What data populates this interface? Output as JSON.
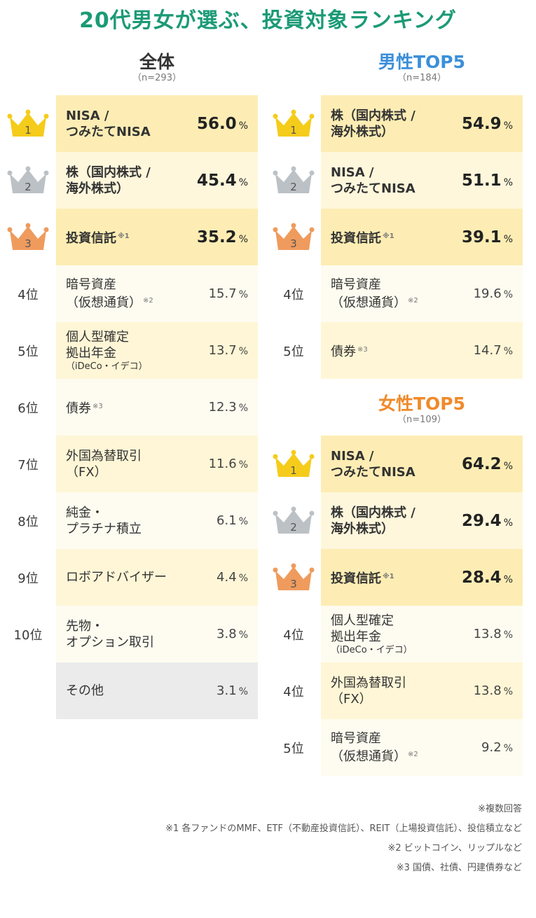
{
  "title": "20代男女が選ぶ、投資対象ランキング",
  "colors": {
    "gold": "#f5cc1a",
    "silver": "#bcc1c5",
    "bronze": "#ef9b5d",
    "male": "#3b8fd9",
    "female": "#f08a2b",
    "title": "#1b9a76"
  },
  "chart_data": [
    {
      "type": "table",
      "title": "全体",
      "n": "（n=293）",
      "rows": [
        {
          "rank": "1",
          "label": "NISA /\nつみたてNISA",
          "value": "56.0",
          "unit": "%"
        },
        {
          "rank": "2",
          "label": "株（国内株式 /\n海外株式）",
          "value": "45.4",
          "unit": "%"
        },
        {
          "rank": "3",
          "label": "投資信託",
          "note": "※1",
          "value": "35.2",
          "unit": "%"
        },
        {
          "rank": "4位",
          "label": "暗号資産\n（仮想通貨）",
          "note": "※2",
          "value": "15.7",
          "unit": "%"
        },
        {
          "rank": "5位",
          "label": "個人型確定\n拠出年金",
          "sub": "（iDeCo・イデコ）",
          "value": "13.7",
          "unit": "%"
        },
        {
          "rank": "6位",
          "label": "債券",
          "note": "※3",
          "value": "12.3",
          "unit": "%"
        },
        {
          "rank": "7位",
          "label": "外国為替取引\n（FX）",
          "value": "11.6",
          "unit": "%"
        },
        {
          "rank": "8位",
          "label": "純金・\nプラチナ積立",
          "value": "6.1",
          "unit": "%"
        },
        {
          "rank": "9位",
          "label": "ロボアドバイザー",
          "value": "4.4",
          "unit": "%"
        },
        {
          "rank": "10位",
          "label": "先物・\nオプション取引",
          "value": "3.8",
          "unit": "%"
        },
        {
          "rank": "",
          "label": "その他",
          "value": "3.1",
          "unit": "%"
        }
      ]
    },
    {
      "type": "table",
      "title": "男性TOP5",
      "n": "（n=184）",
      "rows": [
        {
          "rank": "1",
          "label": "株（国内株式 /\n海外株式）",
          "value": "54.9",
          "unit": "%"
        },
        {
          "rank": "2",
          "label": "NISA /\nつみたてNISA",
          "value": "51.1",
          "unit": "%"
        },
        {
          "rank": "3",
          "label": "投資信託",
          "note": "※1",
          "value": "39.1",
          "unit": "%"
        },
        {
          "rank": "4位",
          "label": "暗号資産\n（仮想通貨）",
          "note": "※2",
          "value": "19.6",
          "unit": "%"
        },
        {
          "rank": "5位",
          "label": "債券",
          "note": "※3",
          "value": "14.7",
          "unit": "%"
        }
      ]
    },
    {
      "type": "table",
      "title": "女性TOP5",
      "n": "（n=109）",
      "rows": [
        {
          "rank": "1",
          "label": "NISA /\nつみたてNISA",
          "value": "64.2",
          "unit": "%"
        },
        {
          "rank": "2",
          "label": "株（国内株式 /\n海外株式）",
          "value": "29.4",
          "unit": "%"
        },
        {
          "rank": "3",
          "label": "投資信託",
          "note": "※1",
          "value": "28.4",
          "unit": "%"
        },
        {
          "rank": "4位",
          "label": "個人型確定\n拠出年金",
          "sub": "（iDeCo・イデコ）",
          "value": "13.8",
          "unit": "%"
        },
        {
          "rank": "4位",
          "label": "外国為替取引\n（FX）",
          "value": "13.8",
          "unit": "%"
        },
        {
          "rank": "5位",
          "label": "暗号資産\n（仮想通貨）",
          "note": "※2",
          "value": "9.2",
          "unit": "%"
        }
      ]
    }
  ],
  "notes": [
    "※複数回答",
    "※1 各ファンドのMMF、ETF（不動産投資信託）、REIT（上場投資信託）、投信積立など",
    "※2 ビットコイン、リップルなど",
    "※3 国債、社債、円建債券など"
  ]
}
